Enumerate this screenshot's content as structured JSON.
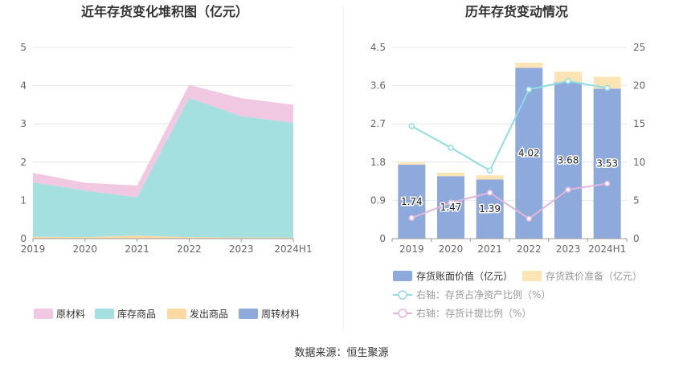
{
  "source_label": "数据来源：恒生聚源",
  "colors": {
    "raw": "#f0c8e2",
    "stock": "#a5e0e0",
    "ship": "#fbd9a2",
    "wip": "#8eaadc",
    "book": "#8eaadc",
    "provision": "#fde4b4",
    "ratio_line": "#8fdde2",
    "provision_ratio_line": "#e2b6da",
    "axis_text": "#666666",
    "grid": "#e6e6e6",
    "title": "#333333"
  },
  "chart_data": [
    {
      "type": "area",
      "stacked": true,
      "title": "近年存货变化堆积图（亿元）",
      "categories": [
        "2019",
        "2020",
        "2021",
        "2022",
        "2023",
        "2024H1"
      ],
      "ylim": [
        0,
        5
      ],
      "yticks": [
        "0",
        "1",
        "2",
        "3",
        "4",
        "5"
      ],
      "grid": true,
      "legend_position": "bottom",
      "series": [
        {
          "name": "周转材料",
          "key": "wip",
          "values": [
            0.0,
            0.0,
            0.0,
            0.0,
            0.0,
            0.0
          ]
        },
        {
          "name": "发出商品",
          "key": "ship",
          "values": [
            0.05,
            0.04,
            0.08,
            0.04,
            0.03,
            0.03
          ]
        },
        {
          "name": "库存商品",
          "key": "stock",
          "values": [
            1.42,
            1.22,
            1.0,
            3.64,
            3.17,
            3.0
          ]
        },
        {
          "name": "原材料",
          "key": "raw",
          "values": [
            0.25,
            0.2,
            0.31,
            0.34,
            0.47,
            0.47
          ]
        }
      ],
      "legend_order": [
        "原材料",
        "库存商品",
        "发出商品",
        "周转材料"
      ]
    },
    {
      "type": "bar",
      "stacked": true,
      "title": "历年存货变动情况",
      "categories": [
        "2019",
        "2020",
        "2021",
        "2022",
        "2023",
        "2024H1"
      ],
      "ylim": [
        0,
        4.5
      ],
      "yticks": [
        "0",
        "0.9",
        "1.8",
        "2.7",
        "3.6",
        "4.5"
      ],
      "y2lim": [
        0,
        25
      ],
      "y2ticks": [
        "0",
        "5",
        "10",
        "15",
        "20",
        "25"
      ],
      "grid": true,
      "legend_position": "bottom",
      "series": [
        {
          "name": "存货账面价值（亿元）",
          "key": "book",
          "values": [
            1.74,
            1.47,
            1.39,
            4.02,
            3.68,
            3.53
          ],
          "labels": [
            "1.74",
            "1.47",
            "1.39",
            "4.02",
            "3.68",
            "3.53"
          ]
        },
        {
          "name": "存货跌价准备（亿元）",
          "key": "provision",
          "values": [
            0.05,
            0.08,
            0.1,
            0.12,
            0.25,
            0.28
          ]
        }
      ],
      "lines": [
        {
          "name": "右轴：存货占净资产比例（%）",
          "key": "ratio_line",
          "axis": "right",
          "values": [
            14.7,
            11.9,
            8.9,
            19.5,
            20.6,
            19.7
          ]
        },
        {
          "name": "右轴：存货计提比例（%）",
          "key": "provision_ratio_line",
          "axis": "right",
          "values": [
            2.7,
            4.7,
            6.0,
            2.6,
            6.4,
            7.2
          ]
        }
      ]
    }
  ]
}
